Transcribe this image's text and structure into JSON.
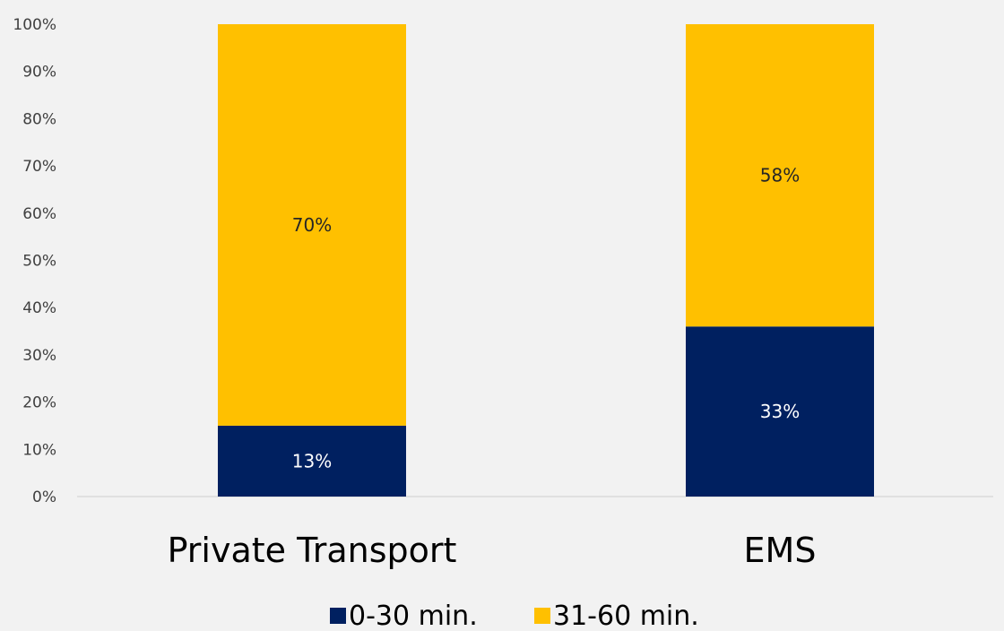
{
  "chart_data": {
    "type": "bar",
    "stacked": true,
    "categories": [
      "Private Transport",
      "EMS"
    ],
    "series": [
      {
        "name": "0-30 min.",
        "values": [
          15,
          36
        ],
        "labels": [
          "13%",
          "33%"
        ],
        "color": "#002060",
        "label_color": "#ffffff"
      },
      {
        "name": "31-60 min.",
        "values": [
          85,
          64
        ],
        "labels": [
          "70%",
          "58%"
        ],
        "color": "#ffc000",
        "label_color": "#262626"
      }
    ],
    "y_ticks": [
      "0%",
      "10%",
      "20%",
      "30%",
      "40%",
      "50%",
      "60%",
      "70%",
      "80%",
      "90%",
      "100%"
    ],
    "ylim": [
      0,
      100
    ],
    "grid": false,
    "legend": "bottom",
    "xlabel": "",
    "ylabel": "",
    "title": ""
  }
}
